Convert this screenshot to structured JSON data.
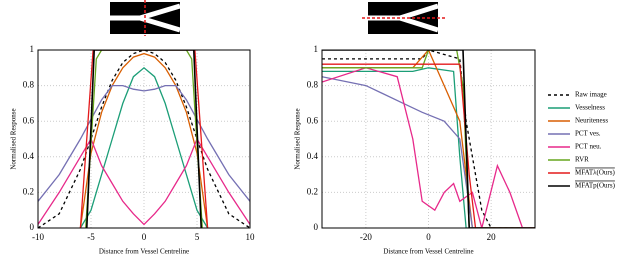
{
  "chart_data": [
    {
      "type": "line",
      "xlabel": "Distance from Vessel Centreline",
      "ylabel": "Normalised Response",
      "xlim": [
        -10,
        10
      ],
      "xticks": [
        -10,
        -5,
        0,
        5,
        10
      ],
      "ylim": [
        0,
        1
      ],
      "yticks": [
        0,
        0.2,
        0.4,
        0.6,
        0.8,
        1
      ],
      "grid": true,
      "series": [
        {
          "name": "Raw image",
          "color": "#000000",
          "dashed": true,
          "x": [
            -10,
            -8,
            -6,
            -5,
            -4,
            -3,
            -2,
            -1,
            0,
            1,
            2,
            3,
            4,
            5,
            6,
            8,
            10
          ],
          "values": [
            0,
            0.08,
            0.33,
            0.5,
            0.68,
            0.83,
            0.93,
            0.98,
            1,
            0.98,
            0.93,
            0.83,
            0.68,
            0.5,
            0.33,
            0.08,
            0
          ]
        },
        {
          "name": "Vesselness",
          "color": "#1b9e77",
          "x": [
            -6,
            -5,
            -4,
            -3,
            -2,
            -1,
            0,
            1,
            2,
            3,
            4,
            5,
            6
          ],
          "values": [
            0,
            0.1,
            0.3,
            0.5,
            0.7,
            0.85,
            0.9,
            0.85,
            0.7,
            0.5,
            0.3,
            0.1,
            0
          ]
        },
        {
          "name": "Neuriteness",
          "color": "#d95f02",
          "x": [
            -6,
            -5,
            -4,
            -3,
            -2,
            -1,
            0,
            1,
            2,
            3,
            4,
            5,
            6
          ],
          "values": [
            0,
            0.42,
            0.65,
            0.8,
            0.9,
            0.96,
            0.98,
            0.96,
            0.9,
            0.8,
            0.65,
            0.42,
            0
          ]
        },
        {
          "name": "PCT ves.",
          "color": "#7570b3",
          "x": [
            -10,
            -8,
            -6,
            -4,
            -3,
            -2,
            -1,
            0,
            1,
            2,
            3,
            4,
            6,
            8,
            10
          ],
          "values": [
            0.15,
            0.3,
            0.5,
            0.72,
            0.8,
            0.8,
            0.78,
            0.77,
            0.78,
            0.8,
            0.8,
            0.72,
            0.5,
            0.3,
            0.15
          ]
        },
        {
          "name": "PCT neu.",
          "color": "#e7298a",
          "x": [
            -10,
            -8,
            -6,
            -5,
            -4,
            -3,
            -2,
            -1,
            0,
            1,
            2,
            3,
            4,
            5,
            6,
            8,
            10
          ],
          "values": [
            0.02,
            0.2,
            0.4,
            0.5,
            0.35,
            0.25,
            0.15,
            0.08,
            0.02,
            0.08,
            0.15,
            0.25,
            0.35,
            0.5,
            0.4,
            0.2,
            0.02
          ]
        },
        {
          "name": "RVR",
          "color": "#66a61e",
          "x": [
            -5.5,
            -4.5,
            -4,
            4,
            4.5,
            5.5
          ],
          "values": [
            0,
            0.95,
            1,
            1,
            0.95,
            0
          ]
        },
        {
          "name": "MFATλ(Ours)",
          "color": "#e41a1c",
          "x": [
            -6,
            -4.8,
            4.8,
            6
          ],
          "values": [
            0,
            1,
            1,
            0
          ]
        },
        {
          "name": "MFATp(Ours)",
          "color": "#000000",
          "x": [
            -5.4,
            -4.7,
            4.7,
            5.4
          ],
          "values": [
            0,
            1,
            1,
            0
          ]
        }
      ]
    },
    {
      "type": "line",
      "xlabel": "Distance from Vessel Centreline",
      "ylabel": "Normalised Response",
      "xlim": [
        -34,
        34
      ],
      "xticks": [
        -20,
        0,
        20
      ],
      "ylim": [
        0,
        1
      ],
      "yticks": [
        0,
        0.2,
        0.4,
        0.6,
        0.8,
        1
      ],
      "grid": true,
      "series": [
        {
          "name": "Raw image",
          "color": "#000000",
          "dashed": true,
          "x": [
            -34,
            -2,
            0,
            10,
            12,
            14,
            17,
            20,
            34
          ],
          "values": [
            0.95,
            0.95,
            1,
            0.95,
            0.6,
            0.4,
            0.1,
            0,
            0
          ]
        },
        {
          "name": "Vesselness",
          "color": "#1b9e77",
          "x": [
            -34,
            -5,
            0,
            8,
            10,
            12,
            34
          ],
          "values": [
            0.88,
            0.88,
            0.9,
            0.88,
            0.4,
            0,
            0
          ]
        },
        {
          "name": "Neuriteness",
          "color": "#d95f02",
          "x": [
            -34,
            -5,
            0,
            5,
            10,
            14,
            16,
            34
          ],
          "values": [
            0.9,
            0.9,
            1,
            0.8,
            0.6,
            0,
            0,
            0
          ]
        },
        {
          "name": "PCT ves.",
          "color": "#7570b3",
          "x": [
            -34,
            -20,
            -8,
            -2,
            5,
            10,
            14,
            34
          ],
          "values": [
            0.85,
            0.8,
            0.7,
            0.65,
            0.6,
            0.5,
            0,
            0
          ]
        },
        {
          "name": "PCT neu.",
          "color": "#e7298a",
          "x": [
            -34,
            -20,
            -10,
            -5,
            -2,
            2,
            5,
            8,
            10,
            14,
            17,
            22,
            26,
            30,
            34
          ],
          "values": [
            0.82,
            0.9,
            0.85,
            0.5,
            0.15,
            0.1,
            0.2,
            0.25,
            0.15,
            0.2,
            0,
            0.35,
            0.2,
            0,
            0
          ]
        },
        {
          "name": "RVR",
          "color": "#66a61e",
          "x": [
            -34,
            -2,
            0,
            9,
            11,
            13,
            34
          ],
          "values": [
            0.9,
            0.9,
            1,
            1,
            0.8,
            0,
            0
          ]
        },
        {
          "name": "MFATλ(Ours)",
          "color": "#e41a1c",
          "x": [
            -34,
            10,
            13,
            15,
            34
          ],
          "values": [
            0.92,
            0.92,
            0.3,
            0,
            0
          ]
        },
        {
          "name": "MFATp(Ours)",
          "color": "#000000",
          "x": [
            -34,
            11,
            13,
            34
          ],
          "values": [
            1,
            1,
            0,
            0
          ]
        }
      ]
    }
  ]
}
